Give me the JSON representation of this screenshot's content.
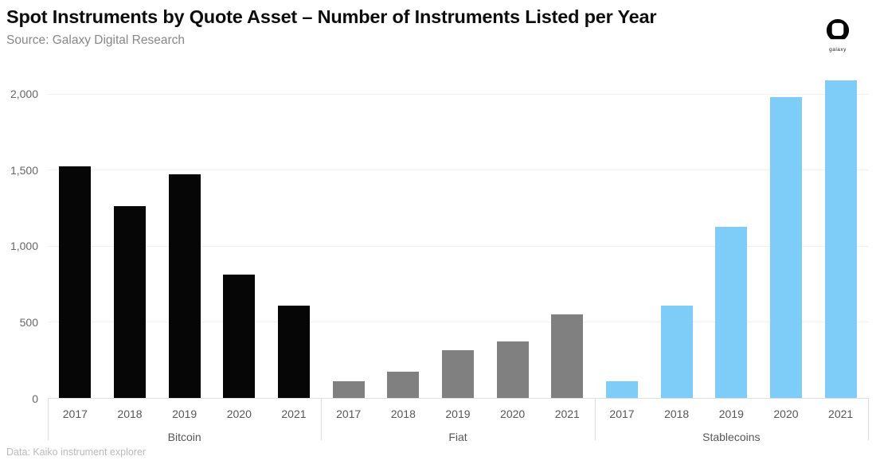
{
  "header": {
    "title": "Spot Instruments by Quote Asset – Number of Instruments Listed per Year",
    "subtitle": "Source: Galaxy Digital Research",
    "logo_text": "galaxy"
  },
  "footer": {
    "data_note": "Data: Kaiko instrument explorer"
  },
  "icons": {
    "logo": "galaxy-helmet-icon"
  },
  "colors": {
    "bitcoin_bar": "#060606",
    "fiat_bar": "#808080",
    "stablecoin_bar": "#7ECDF8",
    "gridline": "#f1f1f1",
    "axis_line": "#e0e0e0",
    "divider": "#dcdcdc",
    "title_text": "#0d0d0d",
    "subtitle_text": "#878787",
    "tick_text": "#666666",
    "footer_text": "#b9b9b9"
  },
  "chart_data": {
    "type": "bar",
    "title": "Spot Instruments by Quote Asset – Number of Instruments Listed per Year",
    "categories": [
      "2017",
      "2018",
      "2019",
      "2020",
      "2021"
    ],
    "groups": [
      {
        "name": "Bitcoin",
        "color": "#060606",
        "values": [
          1520,
          1260,
          1470,
          810,
          605
        ]
      },
      {
        "name": "Fiat",
        "color": "#808080",
        "values": [
          110,
          175,
          315,
          370,
          550
        ]
      },
      {
        "name": "Stablecoins",
        "color": "#7ECDF8",
        "values": [
          110,
          605,
          1125,
          1980,
          2090
        ]
      }
    ],
    "xlabel": "",
    "ylabel": "",
    "ylim": [
      0,
      2145
    ],
    "yticks": [
      {
        "value": 0,
        "label": "0"
      },
      {
        "value": 500,
        "label": "500"
      },
      {
        "value": 1000,
        "label": "1,000"
      },
      {
        "value": 1500,
        "label": "1,500"
      },
      {
        "value": 2000,
        "label": "2,000"
      }
    ],
    "grid": "horizontal",
    "legend": "none"
  }
}
